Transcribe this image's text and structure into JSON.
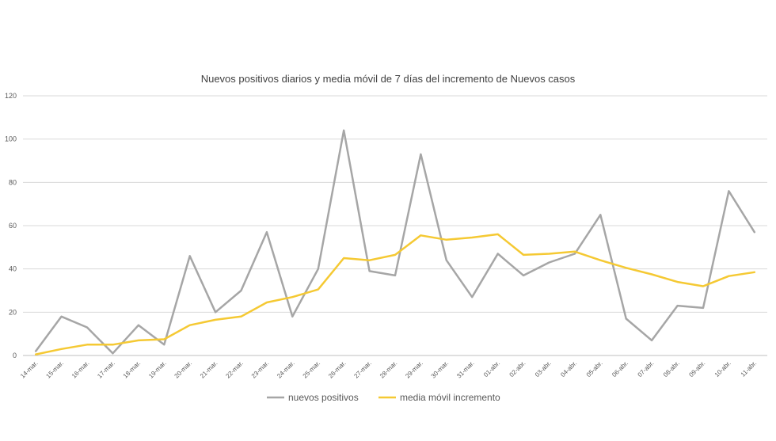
{
  "chart_data": {
    "type": "line",
    "title": "Nuevos positivos diarios y media móvil de 7 días del incremento de Nuevos casos",
    "xlabel": "",
    "ylabel": "",
    "ylim": [
      0,
      120
    ],
    "yticks": [
      0,
      20,
      40,
      60,
      80,
      100,
      120
    ],
    "grid": true,
    "legend_position": "bottom",
    "categories": [
      "14-mar.",
      "15-mar.",
      "16-mar.",
      "17-mar.",
      "18-mar.",
      "19-mar.",
      "20-mar.",
      "21-mar.",
      "22-mar.",
      "23-mar.",
      "24-mar.",
      "25-mar.",
      "26-mar.",
      "27-mar.",
      "28-mar.",
      "29-mar.",
      "30-mar.",
      "31-mar.",
      "01-abr.",
      "02-abr.",
      "03-abr.",
      "04-abr.",
      "05-abr.",
      "06-abr.",
      "07-abr.",
      "08-abr.",
      "09-abr.",
      "10-abr.",
      "11-abr."
    ],
    "series": [
      {
        "name": "nuevos positivos",
        "color": "#a6a6a6",
        "values": [
          2,
          18,
          13,
          1,
          14,
          5,
          46,
          20,
          30,
          57,
          18,
          40,
          104,
          39,
          37,
          93,
          44,
          27,
          47,
          37,
          43,
          47,
          65,
          17,
          7,
          23,
          22,
          76,
          57
        ]
      },
      {
        "name": "media móvil incremento",
        "color": "#f5c933",
        "values": [
          0.5,
          3,
          5,
          5,
          7,
          7.5,
          14,
          16.5,
          18,
          24.5,
          27,
          30.5,
          45,
          44,
          46.5,
          55.5,
          53.5,
          54.5,
          56,
          46.5,
          47,
          48,
          44,
          40.5,
          37.5,
          34,
          32,
          36.7,
          38.5
        ]
      }
    ]
  }
}
